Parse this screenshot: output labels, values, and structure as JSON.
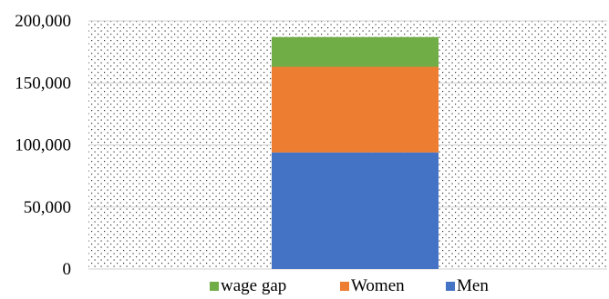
{
  "chart_data": {
    "type": "bar",
    "stacked": true,
    "categories": [
      ""
    ],
    "series": [
      {
        "name": "Men",
        "values": [
          94000
        ],
        "color": "#4472C4"
      },
      {
        "name": "Women",
        "values": [
          69000
        ],
        "color": "#ED7D31"
      },
      {
        "name": "wage gap",
        "values": [
          24000
        ],
        "color": "#70AD47"
      }
    ],
    "ylim": [
      0,
      200000
    ],
    "yticks": [
      {
        "value": 0,
        "label": "0"
      },
      {
        "value": 50000,
        "label": "50,000"
      },
      {
        "value": 100000,
        "label": "100,000"
      },
      {
        "value": 150000,
        "label": "150,000"
      },
      {
        "value": 200000,
        "label": "200,000"
      }
    ],
    "grid": true,
    "plot_fill": "dotted",
    "legend": {
      "position": "bottom",
      "order": [
        "wage gap",
        "Women",
        "Men"
      ]
    }
  }
}
